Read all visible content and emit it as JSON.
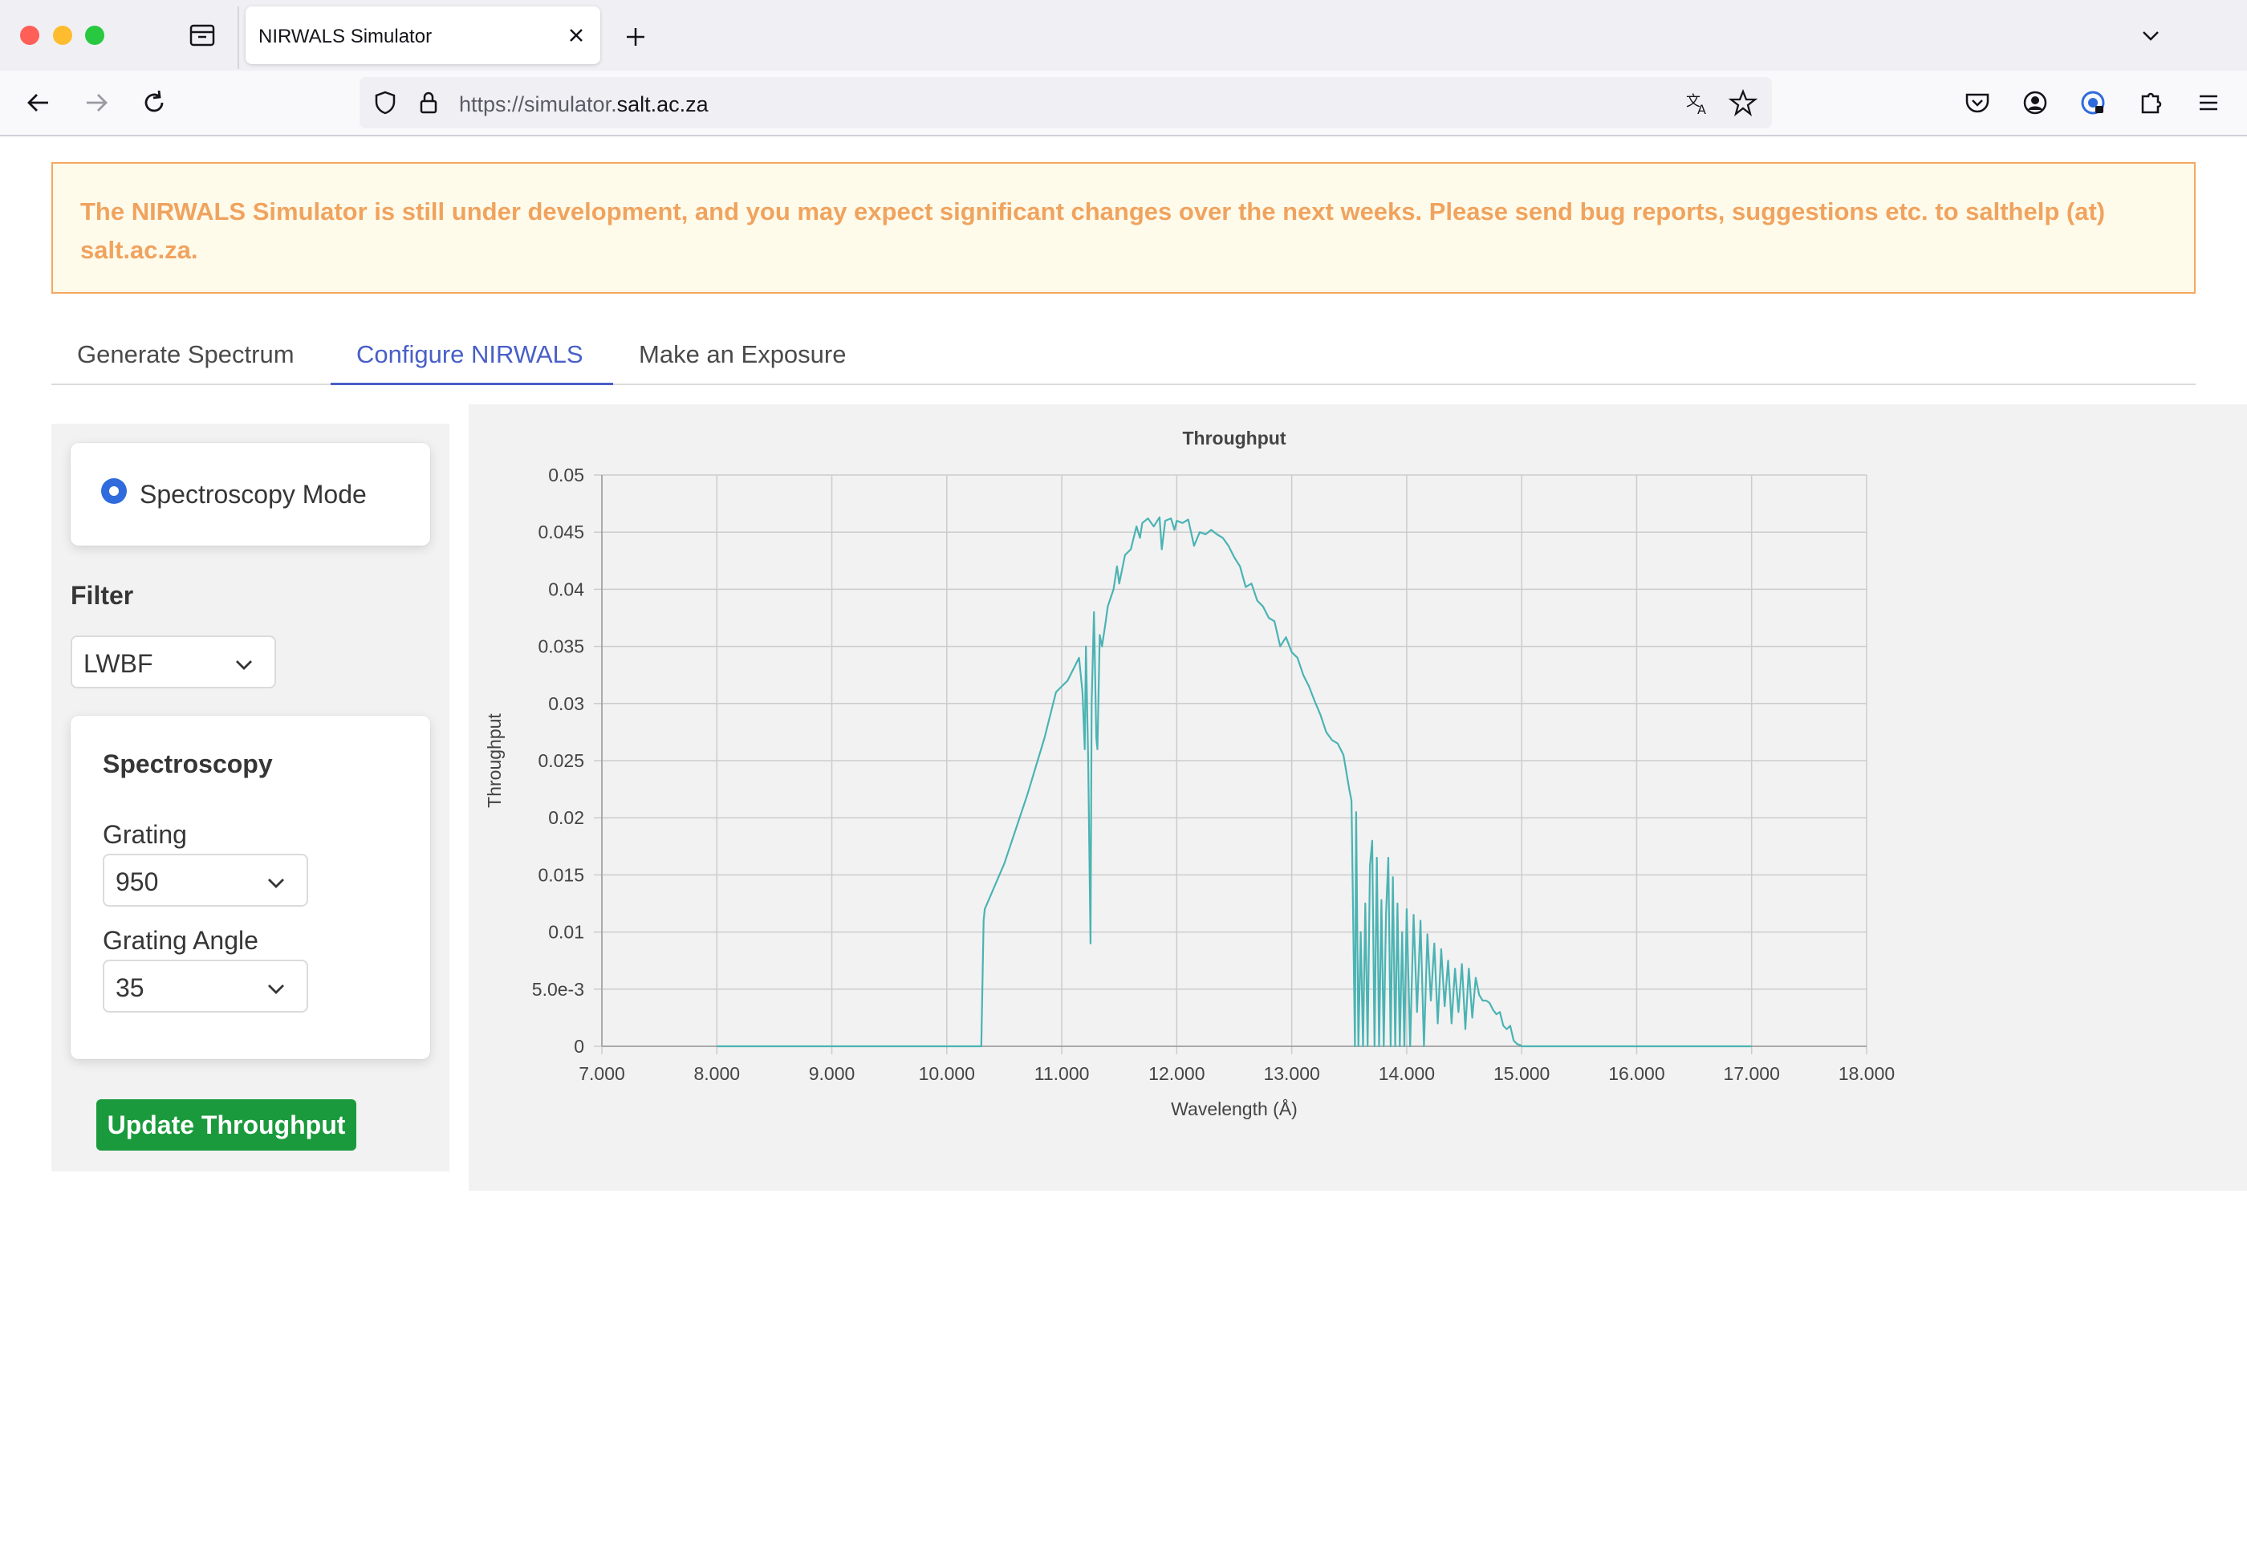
{
  "browser": {
    "tab_title": "NIRWALS Simulator",
    "url_scheme_prefix": "https://simulator.",
    "url_host": "salt.ac.za"
  },
  "notice": {
    "text": "The NIRWALS Simulator is still under development, and you may expect significant changes over the next weeks. Please send bug reports, suggestions etc. to salthelp (at) salt.ac.za."
  },
  "tabs": [
    {
      "label": "Generate Spectrum",
      "active": false
    },
    {
      "label": "Configure NIRWALS",
      "active": true
    },
    {
      "label": "Make an Exposure",
      "active": false
    }
  ],
  "sidebar": {
    "mode_label": "Spectroscopy Mode",
    "filter_label": "Filter",
    "filter_value": "LWBF",
    "spectroscopy_heading": "Spectroscopy",
    "grating_label": "Grating",
    "grating_value": "950",
    "grating_angle_label": "Grating Angle",
    "grating_angle_value": "35",
    "update_button": "Update Throughput"
  },
  "colors": {
    "accent": "#485fc7",
    "notice_text": "#f0a35e",
    "button": "#1a9a3c",
    "series": "#4bb3b3"
  },
  "chart_data": {
    "type": "line",
    "title": "Throughput",
    "xlabel": "Wavelength (Å)",
    "ylabel": "Throughput",
    "xlim": [
      7000,
      18000
    ],
    "ylim": [
      0,
      0.05
    ],
    "x_ticks": [
      "7.000",
      "8.000",
      "9.000",
      "10.000",
      "11.000",
      "12.000",
      "13.000",
      "14.000",
      "15.000",
      "16.000",
      "17.000",
      "18.000"
    ],
    "y_ticks": [
      "0",
      "5.0e-3",
      "0.01",
      "0.015",
      "0.02",
      "0.025",
      "0.03",
      "0.035",
      "0.04",
      "0.045",
      "0.05"
    ],
    "grid": true,
    "series": [
      {
        "x": [
          8000,
          10300,
          10320,
          10330,
          10500,
          10700,
          10850,
          10950,
          11000,
          11050,
          11100,
          11150,
          11180,
          11200,
          11210,
          11230,
          11250,
          11260,
          11280,
          11300,
          11310,
          11330,
          11350,
          11380,
          11400,
          11450,
          11480,
          11500,
          11550,
          11600,
          11650,
          11680,
          11700,
          11750,
          11800,
          11850,
          11870,
          11900,
          11950,
          11980,
          12000,
          12050,
          12100,
          12150,
          12200,
          12250,
          12300,
          12350,
          12400,
          12450,
          12500,
          12550,
          12600,
          12650,
          12700,
          12750,
          12800,
          12850,
          12900,
          12950,
          13000,
          13050,
          13100,
          13150,
          13200,
          13250,
          13300,
          13350,
          13400,
          13450,
          13500,
          13520,
          13550,
          13560,
          13580,
          13600,
          13620,
          13640,
          13660,
          13680,
          13700,
          13720,
          13740,
          13760,
          13780,
          13800,
          13820,
          13840,
          13860,
          13880,
          13900,
          13920,
          13940,
          13960,
          13980,
          14000,
          14030,
          14060,
          14090,
          14120,
          14150,
          14180,
          14210,
          14240,
          14270,
          14300,
          14330,
          14360,
          14390,
          14420,
          14450,
          14480,
          14510,
          14540,
          14570,
          14600,
          14630,
          14660,
          14690,
          14720,
          14750,
          14780,
          14810,
          14840,
          14870,
          14900,
          14930,
          14960,
          14990,
          15000,
          17000
        ],
        "y": [
          0,
          0,
          0.011,
          0.012,
          0.016,
          0.022,
          0.027,
          0.031,
          0.0315,
          0.032,
          0.033,
          0.034,
          0.031,
          0.026,
          0.035,
          0.025,
          0.009,
          0.03,
          0.038,
          0.027,
          0.026,
          0.036,
          0.035,
          0.037,
          0.0385,
          0.04,
          0.042,
          0.0405,
          0.043,
          0.0435,
          0.0455,
          0.0445,
          0.0458,
          0.0462,
          0.0455,
          0.0463,
          0.0435,
          0.046,
          0.0462,
          0.0452,
          0.046,
          0.0458,
          0.0461,
          0.0438,
          0.045,
          0.0448,
          0.0452,
          0.0448,
          0.0445,
          0.0438,
          0.0428,
          0.042,
          0.0402,
          0.0405,
          0.039,
          0.0385,
          0.0375,
          0.0372,
          0.035,
          0.0358,
          0.0345,
          0.034,
          0.0325,
          0.0315,
          0.0302,
          0.029,
          0.0275,
          0.0268,
          0.0265,
          0.0255,
          0.0225,
          0.0215,
          0.0,
          0.0205,
          0.0,
          0.01,
          0.0,
          0.0125,
          0.0,
          0.0158,
          0.018,
          0.0,
          0.0165,
          0.0,
          0.0128,
          0.0,
          0.0115,
          0.0165,
          0.0,
          0.0148,
          0.0,
          0.0125,
          0.0,
          0.01,
          0.0,
          0.012,
          0.0,
          0.0115,
          0.003,
          0.011,
          0.0,
          0.0098,
          0.004,
          0.009,
          0.002,
          0.0085,
          0.0035,
          0.0075,
          0.002,
          0.0068,
          0.003,
          0.0072,
          0.0015,
          0.0068,
          0.0025,
          0.006,
          0.0045,
          0.004,
          0.004,
          0.0038,
          0.0032,
          0.0028,
          0.003,
          0.0018,
          0.0015,
          0.0018,
          0.0005,
          0.0002,
          0.0001,
          0,
          0
        ]
      }
    ]
  }
}
